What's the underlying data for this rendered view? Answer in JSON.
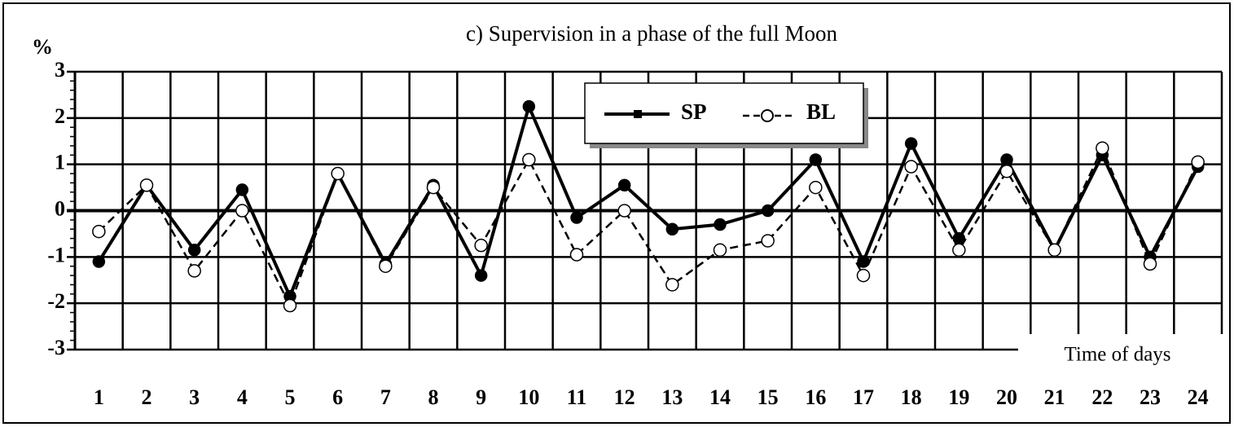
{
  "chart_data": {
    "type": "line",
    "title": "c) Supervision in a phase of the full Moon",
    "y_label": "%",
    "x_label": "Time of days",
    "categories": [
      "1",
      "2",
      "3",
      "4",
      "5",
      "6",
      "7",
      "8",
      "9",
      "10",
      "11",
      "12",
      "13",
      "14",
      "15",
      "16",
      "17",
      "18",
      "19",
      "20",
      "21",
      "22",
      "23",
      "24"
    ],
    "series": [
      {
        "name": "SP",
        "color": "#000000",
        "marker": "filled",
        "dash": false,
        "values": [
          -1.1,
          0.55,
          -0.85,
          0.45,
          -1.85,
          0.8,
          -1.15,
          0.55,
          -1.4,
          2.25,
          -0.15,
          0.55,
          -0.4,
          -0.3,
          0.0,
          1.1,
          -1.1,
          1.45,
          -0.6,
          1.1,
          -0.85,
          1.2,
          -1.0,
          0.95
        ]
      },
      {
        "name": "BL",
        "color": "#000000",
        "marker": "open",
        "dash": true,
        "values": [
          -0.45,
          0.55,
          -1.3,
          0.0,
          -2.05,
          0.8,
          -1.2,
          0.5,
          -0.75,
          1.1,
          -0.95,
          0.0,
          -1.6,
          -0.85,
          -0.65,
          0.5,
          -1.4,
          0.95,
          -0.85,
          0.85,
          -0.85,
          1.35,
          -1.15,
          1.05
        ]
      }
    ],
    "ylim": [
      -3,
      3
    ],
    "yticks": [
      -3,
      -2,
      -1,
      0,
      1,
      2,
      3
    ],
    "grid": true,
    "legend": "top"
  }
}
